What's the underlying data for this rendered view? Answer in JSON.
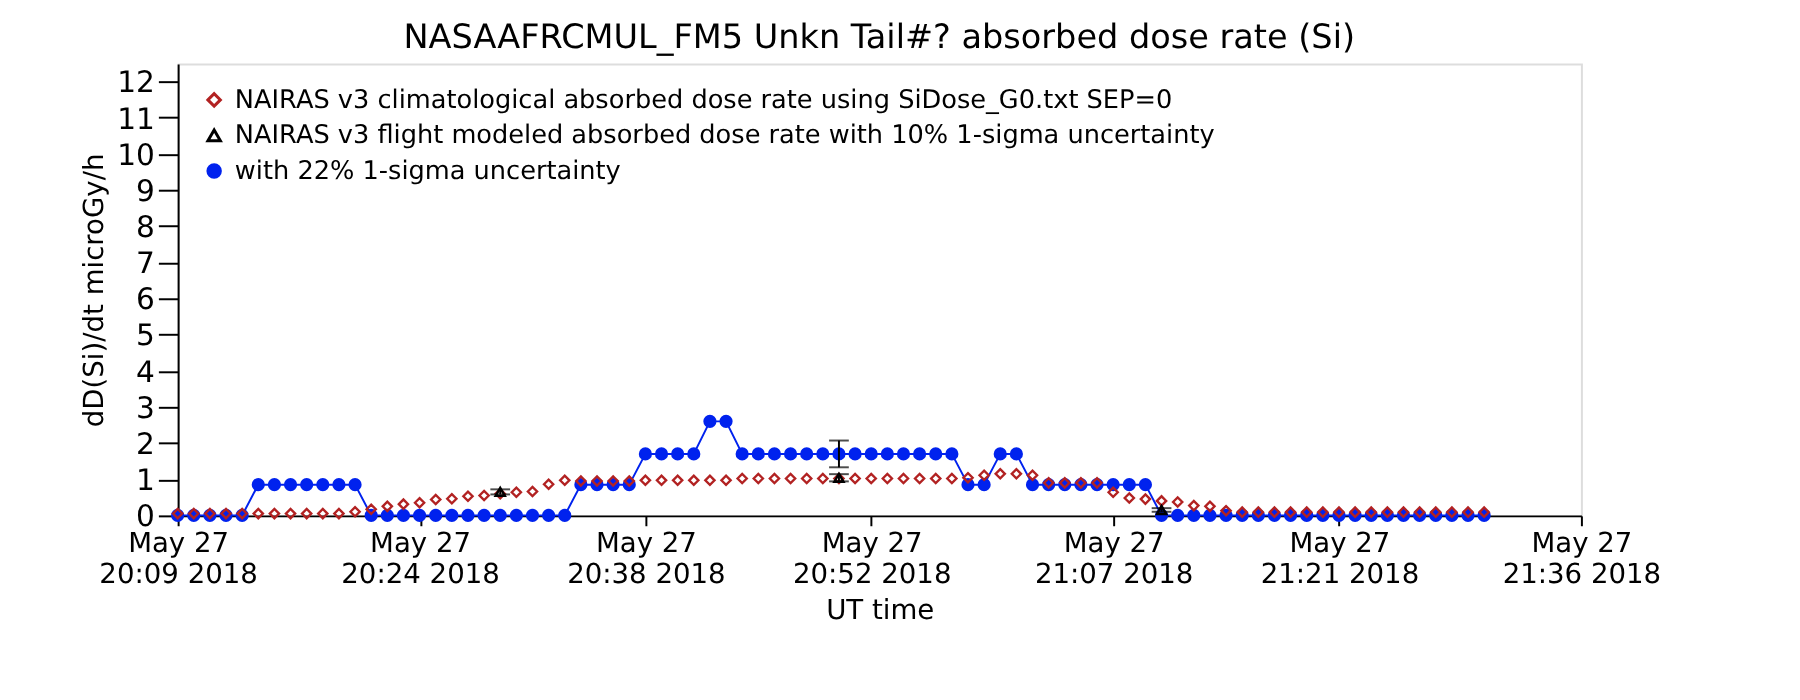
{
  "chart_data": {
    "type": "line",
    "title": "NASAAFRCMUL_FM5 Unkn Tail#? absorbed dose rate (Si)",
    "xlabel": "UT time",
    "ylabel": "dD(Si)/dt microGy/h",
    "x": [
      "2018-05-27T20:09",
      "2018-05-27T20:10",
      "2018-05-27T20:11",
      "2018-05-27T20:12",
      "2018-05-27T20:13",
      "2018-05-27T20:14",
      "2018-05-27T20:15",
      "2018-05-27T20:16",
      "2018-05-27T20:17",
      "2018-05-27T20:18",
      "2018-05-27T20:19",
      "2018-05-27T20:20",
      "2018-05-27T20:21",
      "2018-05-27T20:22",
      "2018-05-27T20:23",
      "2018-05-27T20:24",
      "2018-05-27T20:25",
      "2018-05-27T20:26",
      "2018-05-27T20:27",
      "2018-05-27T20:28",
      "2018-05-27T20:29",
      "2018-05-27T20:30",
      "2018-05-27T20:31",
      "2018-05-27T20:32",
      "2018-05-27T20:33",
      "2018-05-27T20:34",
      "2018-05-27T20:35",
      "2018-05-27T20:36",
      "2018-05-27T20:37",
      "2018-05-27T20:38",
      "2018-05-27T20:39",
      "2018-05-27T20:40",
      "2018-05-27T20:41",
      "2018-05-27T20:42",
      "2018-05-27T20:43",
      "2018-05-27T20:44",
      "2018-05-27T20:45",
      "2018-05-27T20:46",
      "2018-05-27T20:47",
      "2018-05-27T20:48",
      "2018-05-27T20:49",
      "2018-05-27T20:50",
      "2018-05-27T20:51",
      "2018-05-27T20:52",
      "2018-05-27T20:53",
      "2018-05-27T20:54",
      "2018-05-27T20:55",
      "2018-05-27T20:56",
      "2018-05-27T20:57",
      "2018-05-27T20:58",
      "2018-05-27T20:59",
      "2018-05-27T21:00",
      "2018-05-27T21:01",
      "2018-05-27T21:02",
      "2018-05-27T21:03",
      "2018-05-27T21:04",
      "2018-05-27T21:05",
      "2018-05-27T21:06",
      "2018-05-27T21:07",
      "2018-05-27T21:08",
      "2018-05-27T21:09",
      "2018-05-27T21:10",
      "2018-05-27T21:11",
      "2018-05-27T21:12",
      "2018-05-27T21:13",
      "2018-05-27T21:14",
      "2018-05-27T21:15",
      "2018-05-27T21:16",
      "2018-05-27T21:17",
      "2018-05-27T21:18",
      "2018-05-27T21:19",
      "2018-05-27T21:20",
      "2018-05-27T21:21",
      "2018-05-27T21:22",
      "2018-05-27T21:23",
      "2018-05-27T21:24",
      "2018-05-27T21:25",
      "2018-05-27T21:26",
      "2018-05-27T21:27",
      "2018-05-27T21:28",
      "2018-05-27T21:29",
      "2018-05-27T21:30"
    ],
    "series": [
      {
        "name": "NAIRAS v3 climatological absorbed dose rate using SiDose_G0.txt SEP=0",
        "type": "scatter",
        "marker": "diamond",
        "color": "#b22222",
        "values": [
          0.05,
          0.05,
          0.05,
          0.05,
          0.05,
          0.05,
          0.05,
          0.05,
          0.05,
          0.05,
          0.05,
          0.1,
          0.17,
          0.25,
          0.31,
          0.35,
          0.44,
          0.46,
          0.53,
          0.55,
          0.6,
          0.64,
          0.66,
          0.86,
          0.97,
          0.95,
          0.95,
          0.95,
          0.95,
          0.97,
          0.97,
          0.97,
          0.97,
          0.97,
          0.97,
          1.02,
          1.02,
          1.02,
          1.02,
          1.02,
          1.02,
          1.02,
          1.02,
          1.02,
          1.02,
          1.02,
          1.02,
          1.02,
          1.02,
          1.04,
          1.11,
          1.15,
          1.15,
          1.11,
          0.9,
          0.9,
          0.9,
          0.9,
          0.64,
          0.48,
          0.45,
          0.4,
          0.37,
          0.27,
          0.25,
          0.13,
          0.09,
          0.09,
          0.09,
          0.09,
          0.09,
          0.09,
          0.09,
          0.09,
          0.09,
          0.09,
          0.09,
          0.09,
          0.09,
          0.09,
          0.09,
          0.09
        ]
      },
      {
        "name": "NAIRAS v3 flight modeled absorbed dose rate with 10% 1-sigma uncertainty",
        "type": "scatter",
        "marker": "triangle",
        "color": "#000000",
        "x": [
          "2018-05-27T20:29",
          "2018-05-27T20:50",
          "2018-05-27T21:10"
        ],
        "values": [
          0.65,
          1.04,
          0.15
        ],
        "errors": [
          0.07,
          0.1,
          0.05
        ]
      },
      {
        "name": "with 22% 1-sigma uncertainty",
        "marker": "circle",
        "color": "#0022ee",
        "values": [
          0,
          0,
          0,
          0,
          0,
          0.85,
          0.85,
          0.85,
          0.85,
          0.85,
          0.85,
          0.85,
          0,
          0,
          0,
          0,
          0,
          0,
          0,
          0,
          0,
          0,
          0,
          0,
          0,
          0.85,
          0.85,
          0.85,
          0.85,
          1.7,
          1.7,
          1.7,
          1.7,
          2.6,
          2.6,
          1.7,
          1.7,
          1.7,
          1.7,
          1.7,
          1.7,
          1.7,
          1.7,
          1.7,
          1.7,
          1.7,
          1.7,
          1.7,
          1.7,
          0.85,
          0.85,
          1.7,
          1.7,
          0.85,
          0.85,
          0.85,
          0.85,
          0.85,
          0.85,
          0.85,
          0.85,
          0,
          0,
          0,
          0,
          0,
          0,
          0,
          0,
          0,
          0,
          0,
          0,
          0,
          0,
          0,
          0,
          0,
          0,
          0,
          0,
          0
        ],
        "errors": [
          null,
          null,
          null,
          null,
          null,
          null,
          null,
          null,
          null,
          null,
          null,
          null,
          null,
          null,
          null,
          null,
          null,
          null,
          null,
          null,
          null,
          null,
          null,
          null,
          null,
          null,
          null,
          null,
          null,
          null,
          null,
          null,
          null,
          null,
          null,
          null,
          null,
          null,
          null,
          null,
          null,
          0.37,
          null,
          null,
          null,
          null,
          null,
          null,
          null,
          null,
          null,
          null,
          null,
          null,
          null,
          null,
          null,
          null,
          null,
          null,
          null,
          null,
          null,
          null,
          null,
          null,
          null,
          null,
          null,
          null,
          null,
          null,
          null,
          null,
          null,
          null,
          null,
          null,
          null,
          null,
          null,
          null
        ]
      }
    ],
    "xlim": [
      "2018-05-27T20:09",
      "2018-05-27T21:36"
    ],
    "xticks": [
      {
        "value": "2018-05-27T20:09",
        "label": "May 27\n20:09 2018"
      },
      {
        "value": "2018-05-27T20:24",
        "label": "May 27\n20:24 2018"
      },
      {
        "value": "2018-05-27T20:38",
        "label": "May 27\n20:38 2018"
      },
      {
        "value": "2018-05-27T20:52",
        "label": "May 27\n20:52 2018"
      },
      {
        "value": "2018-05-27T21:07",
        "label": "May 27\n21:07 2018"
      },
      {
        "value": "2018-05-27T21:21",
        "label": "May 27\n21:21 2018"
      },
      {
        "value": "2018-05-27T21:36",
        "label": "May 27\n21:36 2018"
      }
    ],
    "ylim": [
      0,
      12.5
    ],
    "yticks": [
      0,
      1,
      2,
      3,
      4,
      5,
      6,
      7,
      8,
      9,
      10,
      11,
      12
    ],
    "legend": "top left"
  }
}
